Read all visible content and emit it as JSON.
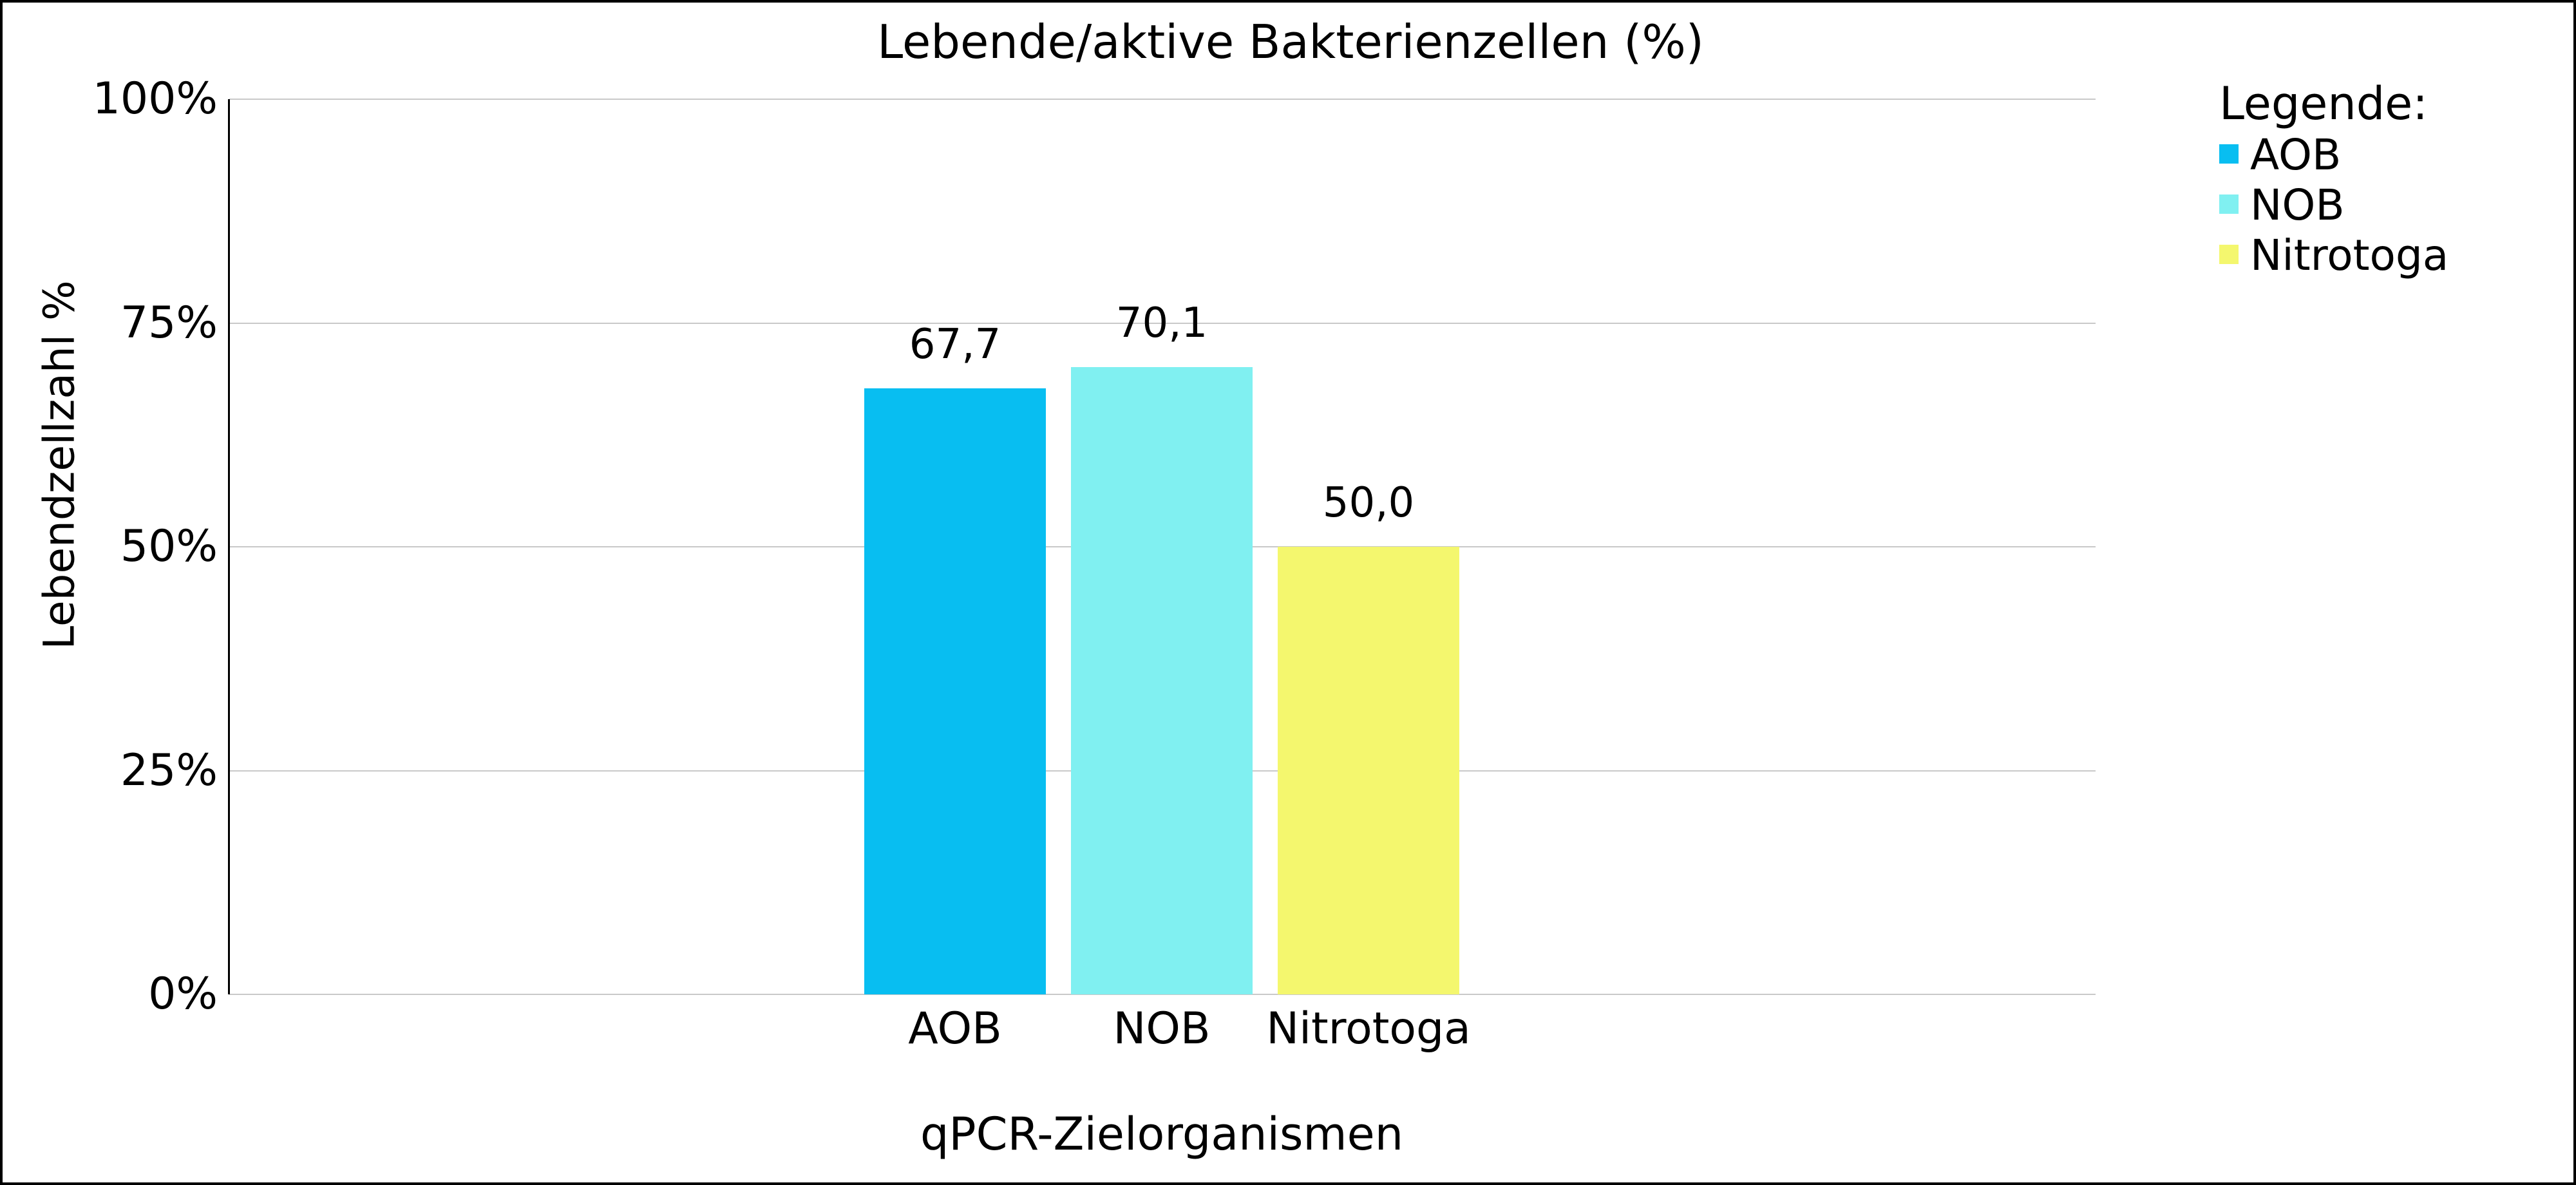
{
  "chart_data": {
    "type": "bar",
    "title": "Lebende/aktive Bakterienzellen (%)",
    "xlabel": "qPCR-Zielorganismen",
    "ylabel": "Lebendzellzahl %",
    "categories": [
      "AOB",
      "NOB",
      "Nitrotoga"
    ],
    "values": [
      67.7,
      70.1,
      50.0
    ],
    "value_labels": [
      "67,7",
      "70,1",
      "50,0"
    ],
    "bar_colors": [
      "#08BEF1",
      "#80F0F1",
      "#F4F76E"
    ],
    "ylim": [
      0,
      100
    ],
    "yticks": [
      {
        "value": 100,
        "label": "100%"
      },
      {
        "value": 75,
        "label": "75%"
      },
      {
        "value": 50,
        "label": "50%"
      },
      {
        "value": 25,
        "label": "25%"
      },
      {
        "value": 0,
        "label": "0%"
      }
    ],
    "grid": true,
    "legend_position": "right-top",
    "legend": {
      "title": "Legende:",
      "entries": [
        {
          "label": "AOB",
          "color": "#08BEF1"
        },
        {
          "label": "NOB",
          "color": "#80F0F1"
        },
        {
          "label": "Nitrotoga",
          "color": "#F4F76E"
        }
      ]
    },
    "colors": {
      "gridline": "#c9c9c9",
      "axis_spine": "#000000",
      "text": "#000000",
      "background": "#ffffff"
    }
  }
}
